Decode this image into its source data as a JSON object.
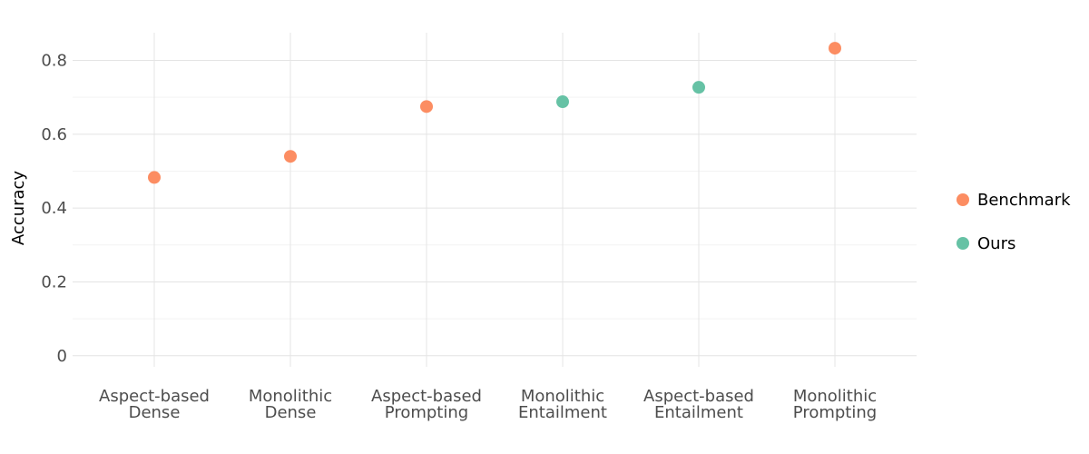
{
  "chart_data": {
    "type": "scatter",
    "title": "",
    "xlabel": "",
    "ylabel": "Accuracy",
    "categories": [
      [
        "Aspect-based",
        "Dense"
      ],
      [
        "Monolithic",
        "Dense"
      ],
      [
        "Aspect-based",
        "Prompting"
      ],
      [
        "Monolithic",
        "Entailment"
      ],
      [
        "Aspect-based",
        "Entailment"
      ],
      [
        "Monolithic",
        "Prompting"
      ]
    ],
    "points": [
      {
        "category_index": 0,
        "y": 0.483,
        "group": "Benchmark"
      },
      {
        "category_index": 1,
        "y": 0.54,
        "group": "Benchmark"
      },
      {
        "category_index": 2,
        "y": 0.675,
        "group": "Benchmark"
      },
      {
        "category_index": 3,
        "y": 0.688,
        "group": "Ours"
      },
      {
        "category_index": 4,
        "y": 0.727,
        "group": "Ours"
      },
      {
        "category_index": 5,
        "y": 0.833,
        "group": "Benchmark"
      }
    ],
    "ylim": [
      -0.03,
      0.875
    ],
    "yticks": [
      0,
      0.2,
      0.4,
      0.6,
      0.8
    ],
    "ytick_labels": [
      "0",
      "0.2",
      "0.4",
      "0.6",
      "0.8"
    ],
    "grid": true,
    "legend_position": "right",
    "legend": [
      {
        "name": "Benchmark",
        "color": "#fc8d62"
      },
      {
        "name": "Ours",
        "color": "#66c2a5"
      }
    ]
  }
}
